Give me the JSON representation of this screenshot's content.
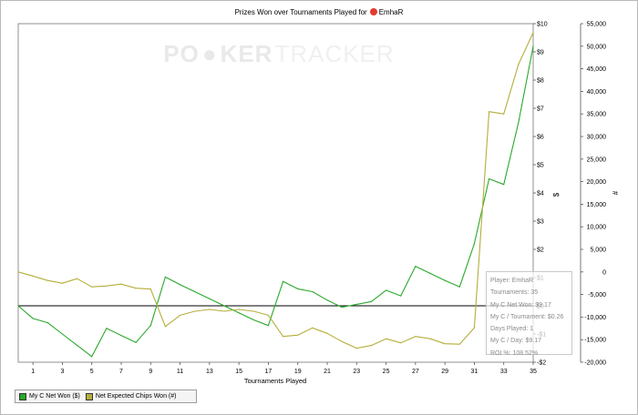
{
  "title": {
    "prefix": "Prizes Won over Tournaments Played for",
    "player": "EmhaR"
  },
  "watermark": {
    "text": "POKERTRACKER",
    "poker": "PO",
    "ker": "KER",
    "tracker": "TRACKER"
  },
  "chart_data": {
    "type": "line",
    "title": "Prizes Won over Tournaments Played for EmhaR",
    "xlabel": "Tournaments Played",
    "ylabel_right_primary": "$",
    "ylabel_right_secondary": "#",
    "xlim": [
      0,
      35
    ],
    "x_ticks": [
      1,
      3,
      5,
      7,
      9,
      11,
      13,
      15,
      17,
      19,
      21,
      23,
      25,
      27,
      29,
      31,
      33,
      35
    ],
    "y_dollar_lim": [
      -2,
      10
    ],
    "y_dollar_ticks": [
      "-$2",
      "-$1",
      "$0",
      "$1",
      "$2",
      "$3",
      "$4",
      "$5",
      "$6",
      "$7",
      "$8",
      "$9",
      "$10"
    ],
    "y_dollar_tick_values": [
      -2,
      -1,
      0,
      1,
      2,
      3,
      4,
      5,
      6,
      7,
      8,
      9,
      10
    ],
    "y_chips_lim": [
      -20000,
      55000
    ],
    "y_chips_ticks": [
      "-20,000",
      "-15,000",
      "-10,000",
      "-5,000",
      "0",
      "5,000",
      "10,000",
      "15,000",
      "20,000",
      "25,000",
      "30,000",
      "35,000",
      "40,000",
      "45,000",
      "50,000",
      "55,000"
    ],
    "y_chips_tick_values": [
      -20000,
      -15000,
      -10000,
      -5000,
      0,
      5000,
      10000,
      15000,
      20000,
      25000,
      30000,
      35000,
      40000,
      45000,
      50000,
      55000
    ],
    "zero_line_dollar": 0,
    "grid": false,
    "series": [
      {
        "name": "My C Net Won ($)",
        "axis": "dollar",
        "color": "#2aa82a",
        "x": [
          0,
          1,
          2,
          3,
          4,
          5,
          6,
          7,
          8,
          9,
          10,
          11,
          12,
          13,
          14,
          15,
          16,
          17,
          18,
          19,
          20,
          21,
          22,
          23,
          24,
          25,
          26,
          27,
          28,
          29,
          30,
          31,
          32,
          33,
          34,
          35
        ],
        "values": [
          0,
          -0.45,
          -0.6,
          -1.0,
          -1.4,
          -1.8,
          -0.8,
          -1.05,
          -1.3,
          -0.7,
          1.02,
          0.75,
          0.5,
          0.25,
          0,
          -0.25,
          -0.5,
          -0.7,
          0.86,
          0.6,
          0.5,
          0.2,
          -0.05,
          0.05,
          0.15,
          0.55,
          0.35,
          1.4,
          1.15,
          0.9,
          0.67,
          2.2,
          4.5,
          4.3,
          6.5,
          9.2
        ]
      },
      {
        "name": "Net Expected Chips Won (#)",
        "axis": "chips",
        "color": "#b5ae3a",
        "x": [
          0,
          1,
          2,
          3,
          4,
          5,
          6,
          7,
          8,
          9,
          10,
          11,
          12,
          13,
          14,
          15,
          16,
          17,
          18,
          19,
          20,
          21,
          22,
          23,
          24,
          25,
          26,
          27,
          28,
          29,
          30,
          31,
          32,
          33,
          34,
          35
        ],
        "values": [
          0,
          -900,
          -1900,
          -2500,
          -1500,
          -3300,
          -3100,
          -2700,
          -3600,
          -3800,
          -12100,
          -9600,
          -8700,
          -8300,
          -8700,
          -8300,
          -8700,
          -9600,
          -14300,
          -14000,
          -12400,
          -13600,
          -15400,
          -16900,
          -16300,
          -14800,
          -15700,
          -14300,
          -14800,
          -15900,
          -16000,
          -12400,
          35500,
          35000,
          46000,
          53000
        ]
      }
    ]
  },
  "legend": [
    {
      "label": "My C Net Won ($)",
      "color": "#2aa82a"
    },
    {
      "label": "Net Expected Chips Won (#)",
      "color": "#b5ae3a"
    }
  ],
  "tooltip": {
    "lines": [
      "Player: EmhaR",
      "Tournaments: 35",
      "My C Net Won: $9.17",
      "My C / Tournament: $0.26",
      "Days Played: 1",
      "My C / Day: $9.17",
      "ROI %: 108.52%"
    ]
  }
}
